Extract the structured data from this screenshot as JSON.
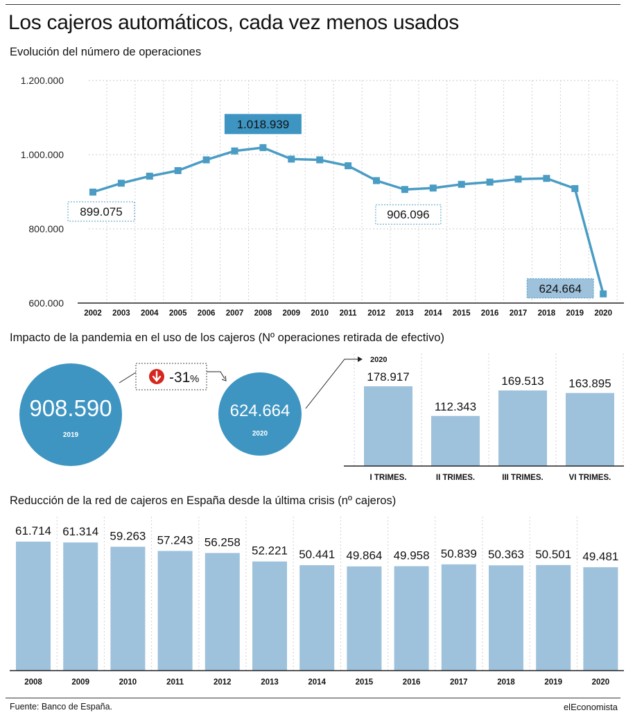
{
  "header": {
    "title": "Los cajeros automáticos, cada vez menos usados"
  },
  "colors": {
    "line": "#4a9cc4",
    "highlight_box": "#3e95c2",
    "bar": "#9ec1dc",
    "circle": "#3e95c2",
    "down_badge": "#d7261e"
  },
  "chart_data": [
    {
      "type": "line",
      "title": "Evolución del número de operaciones",
      "x": [
        "2002",
        "2003",
        "2004",
        "2005",
        "2006",
        "2007",
        "2008",
        "2009",
        "2010",
        "2011",
        "2012",
        "2013",
        "2014",
        "2015",
        "2016",
        "2017",
        "2018",
        "2019",
        "2020"
      ],
      "y_ticks": [
        "1.200.000",
        "1.000.000",
        "800.000",
        "600.000"
      ],
      "ylim": [
        600000,
        1200000
      ],
      "grid": true,
      "series": [
        {
          "values": [
            899075,
            923000,
            942000,
            957000,
            986000,
            1010000,
            1018939,
            988000,
            986000,
            970000,
            930000,
            906096,
            910000,
            920000,
            926000,
            934000,
            936000,
            908590,
            624664
          ]
        }
      ],
      "annotations": [
        {
          "x": "2008",
          "label": "1.018.939"
        },
        {
          "x": "2002",
          "label": "899.075"
        },
        {
          "x": "2013",
          "label": "906.096"
        },
        {
          "x": "2020",
          "label": "624.664"
        }
      ]
    },
    {
      "type": "bar",
      "title": "Impacto de la pandemia en el uso de los cajeros (Nº operaciones retirada de efectivo)",
      "year_label": "2020",
      "comparison": {
        "from_value": "908.590",
        "from_year": "2019",
        "to_value": "624.664",
        "to_year": "2020",
        "change": "-31",
        "change_unit": "%"
      },
      "categories": [
        "I TRIMES.",
        "II TRIMES.",
        "III TRIMES.",
        "VI TRIMES."
      ],
      "values": [
        178917,
        112343,
        169513,
        163895
      ],
      "value_labels": [
        "178.917",
        "112.343",
        "169.513",
        "163.895"
      ],
      "ylim": [
        0,
        200000
      ]
    },
    {
      "type": "bar",
      "title": "Reducción de la red de cajeros en España desde la última crisis (nº cajeros)",
      "categories": [
        "2008",
        "2009",
        "2010",
        "2011",
        "2012",
        "2013",
        "2014",
        "2015",
        "2016",
        "2017",
        "2018",
        "2019",
        "2020"
      ],
      "values": [
        61714,
        61314,
        59263,
        57243,
        56258,
        52221,
        50441,
        49864,
        49958,
        50839,
        50363,
        50501,
        49481
      ],
      "value_labels": [
        "61.714",
        "61.314",
        "59.263",
        "57.243",
        "56.258",
        "52.221",
        "50.441",
        "49.864",
        "49.958",
        "50.839",
        "50.363",
        "50.501",
        "49.481"
      ],
      "ylim": [
        0,
        65000
      ]
    }
  ],
  "footer": {
    "source": "Fuente: Banco de España.",
    "brand": "elEconomista"
  }
}
